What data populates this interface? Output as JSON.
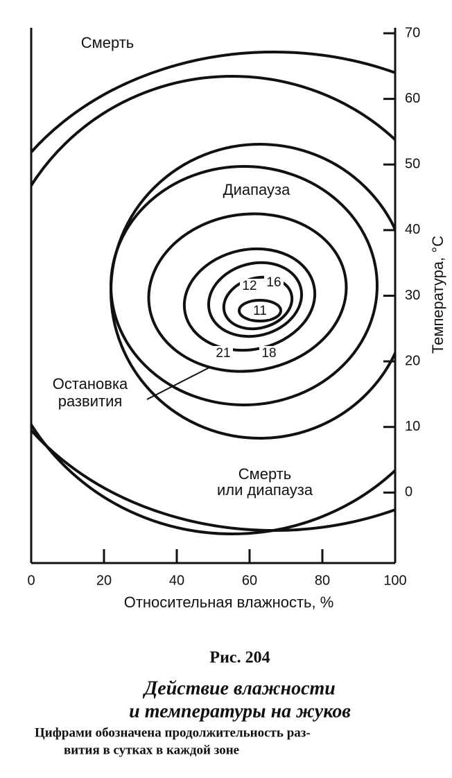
{
  "chart_data": {
    "type": "contour",
    "xlim": [
      0,
      100
    ],
    "xticks": [
      0,
      20,
      40,
      60,
      80,
      100
    ],
    "ylim": [
      -10,
      70
    ],
    "yticks": [
      0,
      10,
      20,
      30,
      40,
      50,
      60,
      70
    ],
    "x_label": "Относительная влажность, %",
    "y_label": "Температура, °C",
    "zone_labels": [
      "Смерть",
      "Диапауза",
      "Остановка",
      "развития",
      "Смерть",
      "или диапауза"
    ],
    "contour_labels": [
      11,
      12,
      16,
      18,
      21
    ]
  },
  "figure": {
    "number": "Рис. 204",
    "title": [
      "Действие влажности",
      "и температуры на жуков"
    ],
    "note": [
      "Цифрами обозначена продолжительность раз-",
      "вития в сутках в каждой зоне"
    ]
  }
}
